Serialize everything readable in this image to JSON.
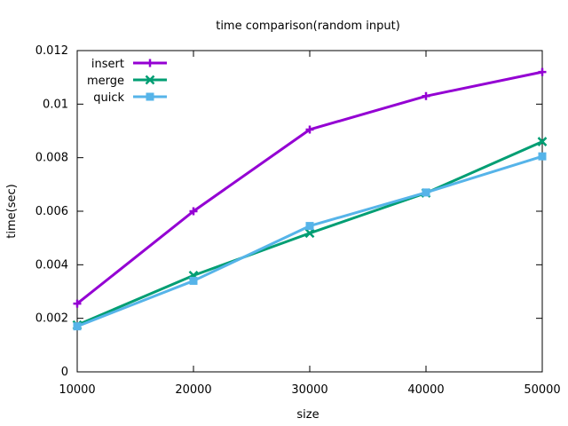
{
  "chart_data": {
    "type": "line",
    "title": "time comparison(random input)",
    "xlabel": "size",
    "ylabel": "time(sec)",
    "x": [
      10000,
      20000,
      30000,
      40000,
      50000
    ],
    "xlim": [
      10000,
      50000
    ],
    "ylim": [
      0,
      0.012
    ],
    "x_ticks": [
      "10000",
      "20000",
      "30000",
      "40000",
      "50000"
    ],
    "y_ticks": [
      "0",
      "0.002",
      "0.004",
      "0.006",
      "0.008",
      "0.01",
      "0.012"
    ],
    "grid": false,
    "legend_position": "top-left",
    "series": [
      {
        "name": "insert",
        "color": "#9400d3",
        "marker": "plus",
        "values": [
          0.00255,
          0.006,
          0.00905,
          0.0103,
          0.0112
        ]
      },
      {
        "name": "merge",
        "color": "#009e73",
        "marker": "cross",
        "values": [
          0.00175,
          0.0036,
          0.00518,
          0.00668,
          0.0086
        ]
      },
      {
        "name": "quick",
        "color": "#56b4e9",
        "marker": "square",
        "values": [
          0.0017,
          0.0034,
          0.00545,
          0.0067,
          0.00805
        ]
      }
    ]
  }
}
